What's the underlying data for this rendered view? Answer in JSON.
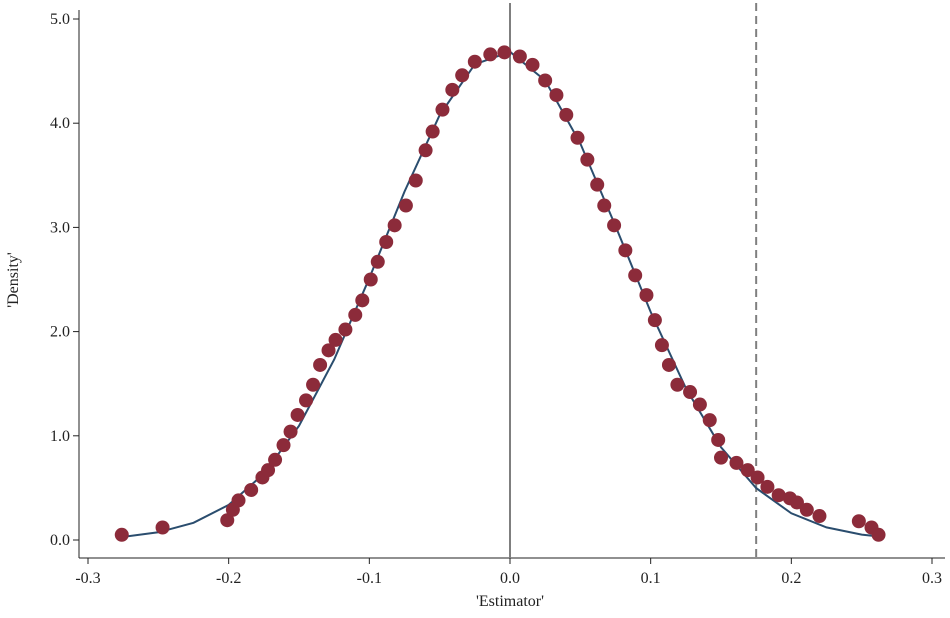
{
  "chart_data": {
    "type": "scatter",
    "xlabel": "'Estimator'",
    "ylabel": "'Density'",
    "xlim": [
      -0.3,
      0.3
    ],
    "ylim": [
      0,
      5
    ],
    "xticks": [
      -0.3,
      -0.2,
      -0.1,
      {
        "value": 0,
        "label": "0.0"
      },
      0.1,
      0.2,
      0.3
    ],
    "yticks": [
      {
        "value": 0,
        "label": "0.0"
      },
      {
        "value": 1,
        "label": "1.0"
      },
      {
        "value": 2,
        "label": "2.0"
      },
      {
        "value": 3,
        "label": "3.0"
      },
      {
        "value": 4,
        "label": "4.0"
      },
      {
        "value": 5,
        "label": "5.0"
      }
    ],
    "vlines": [
      {
        "value": 0,
        "style": "solid",
        "color": "#7f7f7f"
      },
      {
        "value": 0.175,
        "style": "dashed",
        "color": "#7f7f7f"
      }
    ],
    "series": [
      {
        "type": "line",
        "color": "#2a4d6e",
        "x": [
          -0.275,
          -0.25,
          -0.225,
          -0.2,
          -0.175,
          -0.15,
          -0.125,
          -0.1,
          -0.075,
          -0.05,
          -0.025,
          0,
          0.025,
          0.05,
          0.075,
          0.1,
          0.125,
          0.15,
          0.175,
          0.2,
          0.225,
          0.25,
          0.265
        ],
        "values": [
          0.03,
          0.074,
          0.165,
          0.337,
          0.635,
          1.095,
          1.732,
          2.512,
          3.344,
          4.079,
          4.565,
          4.685,
          4.41,
          3.806,
          3.013,
          2.188,
          1.458,
          0.89,
          0.498,
          0.256,
          0.121,
          0.052,
          0.03
        ]
      },
      {
        "type": "scatter",
        "color": "#8c2b3a",
        "x": [
          -0.276,
          -0.247,
          -0.201,
          -0.197,
          -0.193,
          -0.184,
          -0.176,
          -0.172,
          -0.167,
          -0.161,
          -0.156,
          -0.151,
          -0.145,
          -0.14,
          -0.135,
          -0.129,
          -0.124,
          -0.117,
          -0.11,
          -0.105,
          -0.099,
          -0.094,
          -0.088,
          -0.082,
          -0.074,
          -0.067,
          -0.06,
          -0.055,
          -0.048,
          -0.041,
          -0.034,
          -0.025,
          -0.014,
          -0.004,
          0.007,
          0.016,
          0.025,
          0.033,
          0.04,
          0.048,
          0.055,
          0.062,
          0.067,
          0.074,
          0.082,
          0.089,
          0.097,
          0.103,
          0.108,
          0.113,
          0.119,
          0.128,
          0.135,
          0.142,
          0.148,
          0.15,
          0.161,
          0.169,
          0.176,
          0.183,
          0.191,
          0.199,
          0.204,
          0.211,
          0.22,
          0.248,
          0.257,
          0.262
        ],
        "values": [
          0.05,
          0.12,
          0.19,
          0.29,
          0.38,
          0.48,
          0.6,
          0.67,
          0.77,
          0.91,
          1.04,
          1.2,
          1.34,
          1.49,
          1.68,
          1.82,
          1.92,
          2.02,
          2.16,
          2.3,
          2.5,
          2.67,
          2.86,
          3.02,
          3.21,
          3.45,
          3.74,
          3.92,
          4.13,
          4.32,
          4.46,
          4.59,
          4.66,
          4.68,
          4.64,
          4.56,
          4.41,
          4.27,
          4.08,
          3.86,
          3.65,
          3.41,
          3.21,
          3.02,
          2.78,
          2.54,
          2.35,
          2.11,
          1.87,
          1.68,
          1.49,
          1.42,
          1.3,
          1.15,
          0.96,
          0.79,
          0.74,
          0.67,
          0.6,
          0.51,
          0.43,
          0.4,
          0.36,
          0.29,
          0.23,
          0.18,
          0.12,
          0.05
        ]
      }
    ]
  }
}
